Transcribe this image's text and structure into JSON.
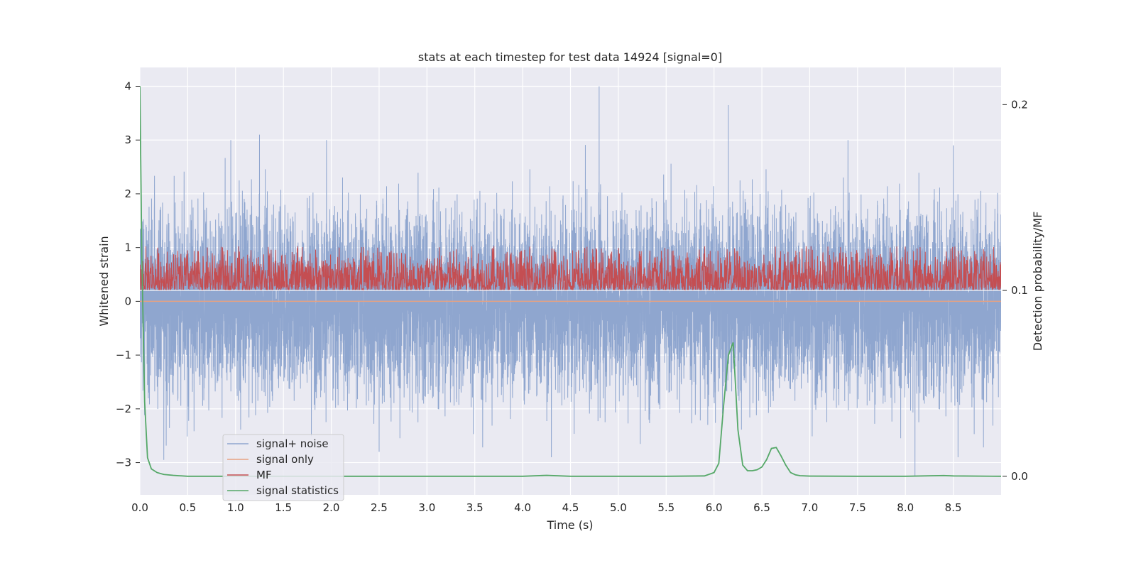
{
  "chart_data": {
    "type": "line",
    "title": "stats at each timestep for test data 14924 [signal=0]",
    "xlabel": "Time (s)",
    "ylabel": "Whitened strain",
    "y2label": "Detection probability/MF",
    "xlim": [
      0.0,
      9.0
    ],
    "ylim": [
      -3.6,
      4.35
    ],
    "y2lim": [
      -0.01,
      0.22
    ],
    "x_ticks": [
      "0.0",
      "0.5",
      "1.0",
      "1.5",
      "2.0",
      "2.5",
      "3.0",
      "3.5",
      "4.0",
      "4.5",
      "5.0",
      "5.5",
      "6.0",
      "6.5",
      "7.0",
      "7.5",
      "8.0",
      "8.5"
    ],
    "y_ticks": [
      "4",
      "3",
      "2",
      "1",
      "0",
      "−1",
      "−2",
      "−3"
    ],
    "y2_ticks": [
      "0.2",
      "0.1",
      "0.0"
    ],
    "grid": true,
    "legend_position": "lower-left",
    "series": [
      {
        "name": "signal+ noise",
        "axis": "left",
        "color": "#8fa6cf",
        "noise": {
          "samples": 9000,
          "mean": 0.0,
          "std": 0.85,
          "min": -3.25,
          "max": 4.0
        },
        "peaks": [
          [
            0.95,
            3.0
          ],
          [
            1.25,
            3.1
          ],
          [
            1.95,
            3.0
          ],
          [
            4.8,
            4.0
          ],
          [
            6.15,
            3.65
          ],
          [
            7.4,
            3.0
          ],
          [
            8.5,
            2.9
          ]
        ],
        "troughs": [
          [
            0.25,
            -2.95
          ],
          [
            2.5,
            -2.8
          ],
          [
            4.3,
            -2.9
          ],
          [
            8.1,
            -3.25
          ],
          [
            8.55,
            -2.9
          ]
        ]
      },
      {
        "name": "signal only",
        "axis": "left",
        "color": "#e8a181",
        "x": [
          0.0,
          9.0
        ],
        "y": [
          0.0,
          0.0
        ]
      },
      {
        "name": "MF",
        "axis": "right",
        "color": "#c44e52",
        "noise": {
          "samples": 3000,
          "baseline": 0.1,
          "min": 0.095,
          "max": 0.125
        },
        "level": 0.1
      },
      {
        "name": "signal statistics",
        "axis": "right",
        "color": "#55a868",
        "x": [
          0.0,
          0.02,
          0.05,
          0.08,
          0.12,
          0.18,
          0.25,
          0.35,
          0.5,
          1.0,
          2.0,
          3.0,
          4.0,
          4.25,
          4.5,
          5.0,
          5.5,
          5.9,
          6.0,
          6.05,
          6.1,
          6.15,
          6.2,
          6.25,
          6.3,
          6.35,
          6.4,
          6.45,
          6.5,
          6.55,
          6.6,
          6.65,
          6.7,
          6.75,
          6.8,
          6.85,
          6.9,
          7.0,
          7.5,
          8.0,
          8.4,
          8.5,
          9.0
        ],
        "y": [
          0.21,
          0.12,
          0.04,
          0.01,
          0.004,
          0.002,
          0.001,
          0.0005,
          0.0,
          0.0,
          0.0,
          0.0,
          0.0,
          0.0005,
          0.0,
          0.0,
          0.0,
          0.0002,
          0.002,
          0.007,
          0.038,
          0.065,
          0.072,
          0.025,
          0.006,
          0.003,
          0.003,
          0.0035,
          0.005,
          0.009,
          0.015,
          0.0155,
          0.011,
          0.006,
          0.002,
          0.0008,
          0.0003,
          0.0001,
          0.0,
          0.0,
          0.0004,
          0.0002,
          0.0
        ]
      }
    ]
  }
}
